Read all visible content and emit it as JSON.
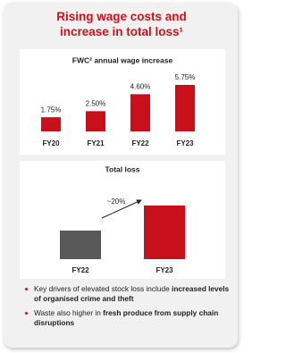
{
  "title": "Rising wage costs and increase in total loss¹",
  "chart_data": [
    {
      "type": "bar",
      "title": "FWC² annual wage increase",
      "categories": [
        "FY20",
        "FY21",
        "FY22",
        "FY23"
      ],
      "values": [
        1.75,
        2.5,
        4.6,
        5.75
      ],
      "value_labels": [
        "1.75%",
        "2.50%",
        "4.60%",
        "5.75%"
      ],
      "color": "#c8101a",
      "ylim": [
        0,
        6.5
      ]
    },
    {
      "type": "bar",
      "title": "Total loss",
      "categories": [
        "FY22",
        "FY23"
      ],
      "values": [
        32,
        60
      ],
      "colors": [
        "#595959",
        "#c8101a"
      ],
      "ylim": [
        0,
        70
      ],
      "annotation": "~20%"
    }
  ],
  "bullets": [
    [
      {
        "text": "Key drivers of elevated stock loss include ",
        "bold": false
      },
      {
        "text": "increased levels of organised crime and theft",
        "bold": true
      }
    ],
    [
      {
        "text": "Waste also higher in ",
        "bold": false
      },
      {
        "text": "fresh produce from supply chain disruptions",
        "bold": true
      }
    ]
  ]
}
